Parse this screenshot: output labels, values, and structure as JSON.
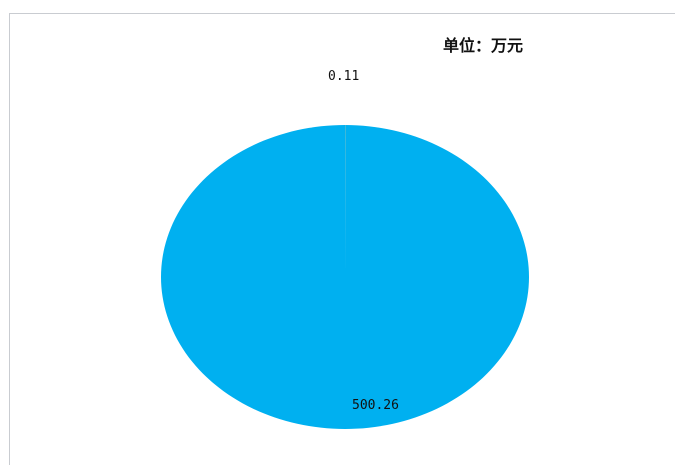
{
  "unit_label": "单位：万元",
  "chart_data": {
    "type": "pie",
    "title": "",
    "unit": "单位：万元",
    "slices": [
      {
        "label": "0.11",
        "value": 0.11,
        "color": "#f5a623"
      },
      {
        "label": "500.26",
        "value": 500.26,
        "color": "#00b0f0"
      }
    ],
    "legend": "none",
    "grid": false
  }
}
